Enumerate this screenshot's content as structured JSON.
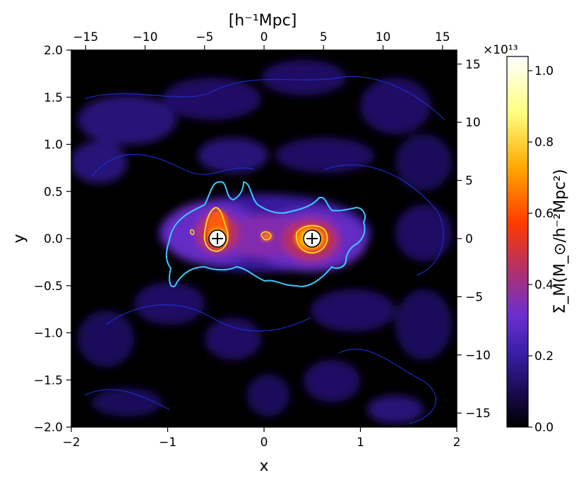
{
  "chart_data": {
    "type": "heatmap",
    "title": "",
    "xlabel": "x",
    "ylabel": "y",
    "top_axis_label": "[h⁻¹Mpc]",
    "colorbar_label": "Σ_M(M_⊙/h⁻²Mpc²)",
    "colorbar_multiplier": "×10¹³",
    "xlim": [
      -2,
      2
    ],
    "ylim": [
      -2,
      2
    ],
    "top_xlim": [
      -16.2,
      16.2
    ],
    "right_ylim": [
      -16.2,
      16.2
    ],
    "x_ticks": [
      -2,
      -1,
      0,
      1,
      2
    ],
    "y_ticks": [
      -2.0,
      -1.5,
      -1.0,
      -0.5,
      0.0,
      0.5,
      1.0,
      1.5,
      2.0
    ],
    "top_ticks": [
      -15,
      -10,
      -5,
      0,
      5,
      10,
      15
    ],
    "right_ticks": [
      -15,
      -10,
      -5,
      0,
      5,
      10,
      15
    ],
    "x_tick_labels": [
      "−2",
      "−1",
      "0",
      "1",
      "2"
    ],
    "y_tick_labels": [
      "−2.0",
      "−1.5",
      "−1.0",
      "−0.5",
      "0.0",
      "0.5",
      "1.0",
      "1.5",
      "2.0"
    ],
    "top_tick_labels": [
      "−15",
      "−10",
      "−5",
      "0",
      "5",
      "10",
      "15"
    ],
    "right_tick_labels": [
      "−15",
      "−10",
      "−5",
      "0",
      "5",
      "10",
      "15"
    ],
    "colorbar_ticks": [
      0.0,
      0.2,
      0.4,
      0.6,
      0.8,
      1.0
    ],
    "colorbar_tick_labels": [
      "0.0",
      "0.2",
      "0.4",
      "0.6",
      "0.8",
      "1.0"
    ],
    "colorbar_range": [
      0.0,
      1.04
    ],
    "colormap": [
      "#000000",
      "#1b0c55",
      "#3a1fa6",
      "#6a2fd0",
      "#b0306e",
      "#ff3a00",
      "#ffa800",
      "#ffff80",
      "#ffffff"
    ],
    "contour_colors": [
      "#1e2fd6",
      "#3dc7ff",
      "#ffd21a",
      "#fff4a0"
    ],
    "peaks": [
      {
        "x": -0.5,
        "y": 0.0,
        "marker": "+"
      },
      {
        "x": 0.5,
        "y": 0.0,
        "marker": "+"
      }
    ]
  }
}
